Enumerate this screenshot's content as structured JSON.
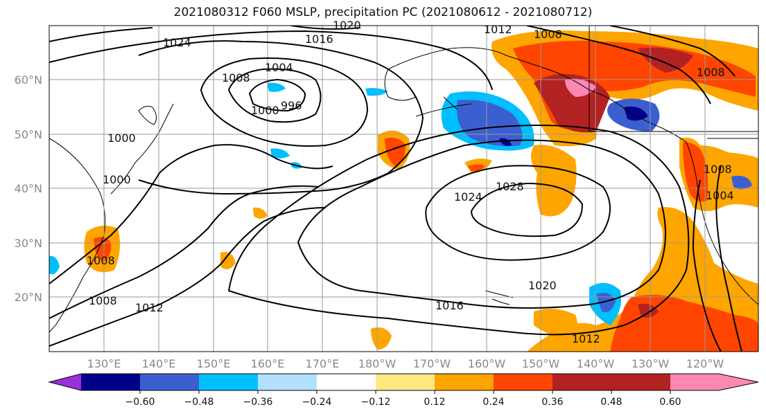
{
  "title": "2021080312 F060 MSLP, precipitation PC (2021080612 - 2021080712)",
  "axes": {
    "lat_labels": [
      "60°N",
      "50°N",
      "40°N",
      "30°N",
      "20°N"
    ],
    "lon_labels": [
      "130°E",
      "140°E",
      "150°E",
      "160°E",
      "170°E",
      "180°W",
      "170°W",
      "160°W",
      "150°W",
      "140°W",
      "130°W",
      "120°W"
    ]
  },
  "colorbar": {
    "ticks": [
      "−0.60",
      "−0.48",
      "−0.36",
      "−0.24",
      "−0.12",
      "0.12",
      "0.24",
      "0.36",
      "0.48",
      "0.60"
    ],
    "colors": [
      "#9b30d6",
      "#00008b",
      "#3c5fd0",
      "#00bfff",
      "#b3e0ff",
      "#ffffff",
      "#ffe884",
      "#ffa500",
      "#ff4500",
      "#b22222",
      "#ff87b4"
    ]
  },
  "isobar_labels": [
    "1024",
    "1016",
    "1020",
    "1012",
    "1008",
    "1008",
    "1008",
    "1004",
    "1000",
    "1000",
    "996",
    "1000",
    "1024",
    "1028",
    "1020",
    "1016",
    "1012",
    "1012",
    "1008",
    "1008",
    "1004",
    "1008"
  ]
}
